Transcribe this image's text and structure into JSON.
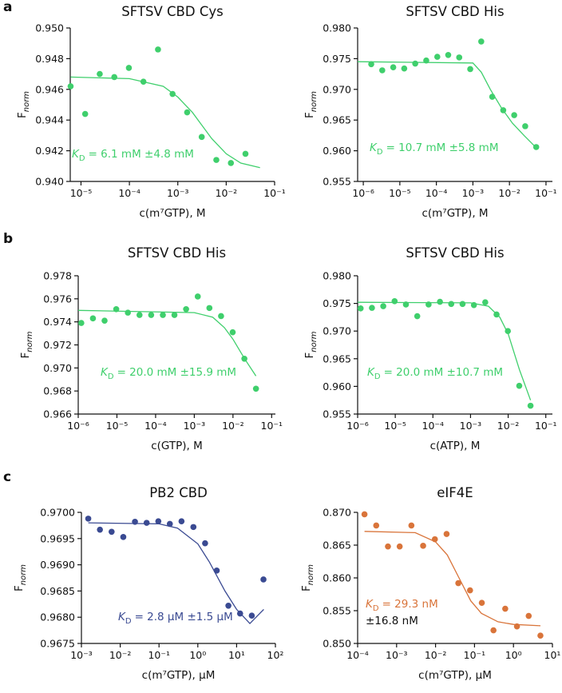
{
  "panel_labels": [
    "a",
    "b",
    "c"
  ],
  "chart_data": [
    {
      "type": "scatter",
      "title": "SFTSV CBD Cys",
      "x_label": "c(m⁷GTP), M",
      "y_label": "F",
      "y_label_sub": "norm",
      "annotation": {
        "k": "K",
        "sub": "D",
        "text": "= 6.1 mM ±4.8 mM"
      },
      "color": "#3fcf6c",
      "xscale": "log",
      "xlim": [
        6e-06,
        0.1
      ],
      "ylim": [
        0.94,
        0.95
      ],
      "xticks": [
        {
          "value": 1e-05,
          "label": "10⁻⁵"
        },
        {
          "value": 0.0001,
          "label": "10⁻⁴"
        },
        {
          "value": 0.001,
          "label": "10⁻³"
        },
        {
          "value": 0.01,
          "label": "10⁻²"
        },
        {
          "value": 0.1,
          "label": "10⁻¹"
        }
      ],
      "yticks": [
        {
          "value": 0.94,
          "label": "0.940"
        },
        {
          "value": 0.942,
          "label": "0.942"
        },
        {
          "value": 0.944,
          "label": "0.944"
        },
        {
          "value": 0.946,
          "label": "0.946"
        },
        {
          "value": 0.948,
          "label": "0.948"
        },
        {
          "value": 0.95,
          "label": "0.950"
        }
      ],
      "points": {
        "x": [
          6.1e-06,
          1.22e-05,
          2.44e-05,
          4.88e-05,
          9.76e-05,
          0.000195,
          0.00039,
          0.00078,
          0.00156,
          0.00312,
          0.00625,
          0.0125,
          0.025
        ],
        "y": [
          0.9462,
          0.9444,
          0.947,
          0.9468,
          0.9474,
          0.9465,
          0.9486,
          0.9457,
          0.9445,
          0.9429,
          0.9414,
          0.9412,
          0.9418
        ]
      },
      "fit": {
        "x": [
          6.1e-06,
          0.0001,
          0.0005,
          0.001,
          0.002,
          0.005,
          0.01,
          0.02,
          0.05
        ],
        "y": [
          0.9468,
          0.9467,
          0.9462,
          0.9455,
          0.9445,
          0.9428,
          0.9418,
          0.9412,
          0.9409
        ]
      }
    },
    {
      "type": "scatter",
      "title": "SFTSV CBD His",
      "x_label": "c(m⁷GTP), M",
      "y_label": "F",
      "y_label_sub": "norm",
      "annotation": {
        "k": "K",
        "sub": "D",
        "text": "= 10.7 mM ±5.8 mM"
      },
      "color": "#3fcf6c",
      "xscale": "log",
      "xlim": [
        7e-07,
        0.15
      ],
      "ylim": [
        0.955,
        0.98
      ],
      "xticks": [
        {
          "value": 1e-06,
          "label": "10⁻⁶"
        },
        {
          "value": 1e-05,
          "label": "10⁻⁵"
        },
        {
          "value": 0.0001,
          "label": "10⁻⁴"
        },
        {
          "value": 0.001,
          "label": "10⁻³"
        },
        {
          "value": 0.01,
          "label": "10⁻²"
        },
        {
          "value": 0.1,
          "label": "10⁻¹"
        }
      ],
      "yticks": [
        {
          "value": 0.955,
          "label": "0.955"
        },
        {
          "value": 0.96,
          "label": "0.960"
        },
        {
          "value": 0.965,
          "label": "0.965"
        },
        {
          "value": 0.97,
          "label": "0.970"
        },
        {
          "value": 0.975,
          "label": "0.975"
        },
        {
          "value": 0.98,
          "label": "0.980"
        }
      ],
      "points": {
        "x": [
          1.65e-06,
          3.3e-06,
          6.6e-06,
          1.32e-05,
          2.64e-05,
          5.28e-05,
          0.000106,
          0.000211,
          0.000422,
          0.000845,
          0.00169,
          0.00338,
          0.00676,
          0.0135,
          0.027,
          0.054
        ],
        "y": [
          0.9741,
          0.9731,
          0.9736,
          0.9734,
          0.9742,
          0.9747,
          0.9753,
          0.9756,
          0.9752,
          0.9733,
          0.9778,
          0.9688,
          0.9666,
          0.9658,
          0.964,
          0.9606
        ]
      },
      "fit": {
        "x": [
          7e-07,
          0.001,
          0.0017,
          0.003,
          0.006,
          0.012,
          0.025,
          0.054
        ],
        "y": [
          0.9745,
          0.9743,
          0.9728,
          0.97,
          0.967,
          0.9645,
          0.9625,
          0.9605
        ]
      }
    },
    {
      "type": "scatter",
      "title": "SFTSV CBD His",
      "x_label": "c(GTP), M",
      "y_label": "F",
      "y_label_sub": "norm",
      "annotation": {
        "k": "K",
        "sub": "D",
        "text": "= 20.0 mM ±15.9 mM"
      },
      "color": "#3fcf6c",
      "xscale": "log",
      "xlim": [
        1e-06,
        0.125
      ],
      "ylim": [
        0.966,
        0.978
      ],
      "xticks": [
        {
          "value": 1e-06,
          "label": "10⁻⁶"
        },
        {
          "value": 1e-05,
          "label": "10⁻⁵"
        },
        {
          "value": 0.0001,
          "label": "10⁻⁴"
        },
        {
          "value": 0.001,
          "label": "10⁻³"
        },
        {
          "value": 0.01,
          "label": "10⁻²"
        },
        {
          "value": 0.1,
          "label": "10⁻¹"
        }
      ],
      "yticks": [
        {
          "value": 0.966,
          "label": "0.966"
        },
        {
          "value": 0.968,
          "label": "0.968"
        },
        {
          "value": 0.97,
          "label": "0.970"
        },
        {
          "value": 0.972,
          "label": "0.972"
        },
        {
          "value": 0.974,
          "label": "0.974"
        },
        {
          "value": 0.976,
          "label": "0.976"
        },
        {
          "value": 0.978,
          "label": "0.978"
        }
      ],
      "points": {
        "x": [
          1.2e-06,
          2.4e-06,
          4.8e-06,
          9.6e-06,
          1.92e-05,
          3.84e-05,
          7.68e-05,
          0.000154,
          0.000307,
          0.000614,
          0.00123,
          0.00246,
          0.00492,
          0.00983,
          0.0197,
          0.0393
        ],
        "y": [
          0.9739,
          0.9743,
          0.9741,
          0.9751,
          0.9748,
          0.9746,
          0.9746,
          0.9746,
          0.9746,
          0.9751,
          0.9762,
          0.9752,
          0.9745,
          0.9731,
          0.9708,
          0.9682
        ]
      },
      "fit": {
        "x": [
          1e-06,
          0.001,
          0.003,
          0.006,
          0.01,
          0.02,
          0.0393
        ],
        "y": [
          0.975,
          0.9748,
          0.9744,
          0.9735,
          0.9725,
          0.9708,
          0.9693
        ]
      }
    },
    {
      "type": "scatter",
      "title": "SFTSV CBD His",
      "x_label": "c(ATP), M",
      "y_label": "F",
      "y_label_sub": "norm",
      "annotation": {
        "k": "K",
        "sub": "D",
        "text": "= 20.0 mM ±10.7 mM"
      },
      "color": "#3fcf6c",
      "xscale": "log",
      "xlim": [
        1e-06,
        0.15
      ],
      "ylim": [
        0.955,
        0.98
      ],
      "xticks": [
        {
          "value": 1e-06,
          "label": "10⁻⁶"
        },
        {
          "value": 1e-05,
          "label": "10⁻⁵"
        },
        {
          "value": 0.0001,
          "label": "10⁻⁴"
        },
        {
          "value": 0.001,
          "label": "10⁻³"
        },
        {
          "value": 0.01,
          "label": "10⁻²"
        },
        {
          "value": 0.1,
          "label": "10⁻¹"
        }
      ],
      "yticks": [
        {
          "value": 0.955,
          "label": "0.955"
        },
        {
          "value": 0.96,
          "label": "0.960"
        },
        {
          "value": 0.965,
          "label": "0.965"
        },
        {
          "value": 0.97,
          "label": "0.970"
        },
        {
          "value": 0.975,
          "label": "0.975"
        },
        {
          "value": 0.98,
          "label": "0.980"
        }
      ],
      "points": {
        "x": [
          1.2e-06,
          2.4e-06,
          4.8e-06,
          9.6e-06,
          1.92e-05,
          3.84e-05,
          7.68e-05,
          0.000154,
          0.000307,
          0.000614,
          0.00123,
          0.00246,
          0.00492,
          0.00983,
          0.0197,
          0.0393
        ],
        "y": [
          0.9741,
          0.9742,
          0.9745,
          0.9754,
          0.9748,
          0.9727,
          0.9748,
          0.9753,
          0.9749,
          0.9749,
          0.9747,
          0.9752,
          0.973,
          0.97,
          0.9601,
          0.9565
        ]
      },
      "fit": {
        "x": [
          1e-06,
          0.001,
          0.003,
          0.006,
          0.01,
          0.02,
          0.0393
        ],
        "y": [
          0.9752,
          0.9751,
          0.9745,
          0.9725,
          0.9695,
          0.963,
          0.9575
        ]
      }
    },
    {
      "type": "scatter",
      "title": "PB2 CBD",
      "x_label": "c(m⁷GTP), μM",
      "y_label": "F",
      "y_label_sub": "norm",
      "annotation": {
        "k": "K",
        "sub": "D",
        "text": "= 2.8 μM ±1.5 μM"
      },
      "color": "#3a4a92",
      "xscale": "log",
      "xlim": [
        0.001,
        100
      ],
      "ylim": [
        0.9675,
        0.97
      ],
      "xticks": [
        {
          "value": 0.001,
          "label": "10⁻³"
        },
        {
          "value": 0.01,
          "label": "10⁻²"
        },
        {
          "value": 0.1,
          "label": "10⁻¹"
        },
        {
          "value": 1,
          "label": "10⁰"
        },
        {
          "value": 10,
          "label": "10¹"
        },
        {
          "value": 100,
          "label": "10²"
        }
      ],
      "yticks": [
        {
          "value": 0.9675,
          "label": "0.9675"
        },
        {
          "value": 0.968,
          "label": "0.9680"
        },
        {
          "value": 0.9685,
          "label": "0.9685"
        },
        {
          "value": 0.969,
          "label": "0.9690"
        },
        {
          "value": 0.9695,
          "label": "0.9695"
        },
        {
          "value": 0.97,
          "label": "0.9700"
        }
      ],
      "points": {
        "x": [
          0.0015,
          0.003,
          0.006,
          0.012,
          0.024,
          0.048,
          0.096,
          0.19,
          0.38,
          0.77,
          1.54,
          3.07,
          6.14,
          12.3,
          24.6,
          49.2
        ],
        "y": [
          0.96988,
          0.96967,
          0.96963,
          0.96953,
          0.96982,
          0.9698,
          0.96983,
          0.96978,
          0.96983,
          0.96972,
          0.96941,
          0.96889,
          0.96822,
          0.96807,
          0.96803,
          0.96872
        ]
      },
      "fit": {
        "x": [
          0.0015,
          0.1,
          0.3,
          1,
          2,
          5,
          10,
          22,
          50
        ],
        "y": [
          0.9698,
          0.96978,
          0.9697,
          0.9694,
          0.96905,
          0.9685,
          0.96815,
          0.96788,
          0.96815
        ]
      }
    },
    {
      "type": "scatter",
      "title": "eIF4E",
      "x_label": "c(m⁷GTP), μM",
      "y_label": "F",
      "y_label_sub": "norm",
      "annotation": {
        "k": "K",
        "sub": "D",
        "text": "= 29.3 nM",
        "text2": "±16.8 nM"
      },
      "color": "#d9743a",
      "xscale": "log",
      "xlim": [
        0.0001,
        10
      ],
      "ylim": [
        0.85,
        0.87
      ],
      "xticks": [
        {
          "value": 0.0001,
          "label": "10⁻⁴"
        },
        {
          "value": 0.001,
          "label": "10⁻³"
        },
        {
          "value": 0.01,
          "label": "10⁻²"
        },
        {
          "value": 0.1,
          "label": "10⁻¹"
        },
        {
          "value": 1,
          "label": "10⁰"
        },
        {
          "value": 10,
          "label": "10¹"
        }
      ],
      "yticks": [
        {
          "value": 0.85,
          "label": "0.850"
        },
        {
          "value": 0.855,
          "label": "0.855"
        },
        {
          "value": 0.86,
          "label": "0.860"
        },
        {
          "value": 0.865,
          "label": "0.865"
        },
        {
          "value": 0.87,
          "label": "0.870"
        }
      ],
      "points": {
        "x": [
          0.00015,
          0.0003,
          0.0006,
          0.0012,
          0.0024,
          0.0048,
          0.0096,
          0.0192,
          0.0384,
          0.0768,
          0.154,
          0.307,
          0.614,
          1.23,
          2.46,
          4.92
        ],
        "y": [
          0.8697,
          0.868,
          0.8648,
          0.8648,
          0.868,
          0.8649,
          0.8659,
          0.8667,
          0.8592,
          0.8581,
          0.8562,
          0.852,
          0.8553,
          0.8526,
          0.8542,
          0.8512
        ]
      },
      "fit": {
        "x": [
          0.00015,
          0.003,
          0.01,
          0.02,
          0.04,
          0.08,
          0.15,
          0.4,
          1,
          4.92
        ],
        "y": [
          0.8671,
          0.8669,
          0.8655,
          0.8635,
          0.86,
          0.8565,
          0.8546,
          0.8533,
          0.8529,
          0.8527
        ]
      }
    }
  ]
}
